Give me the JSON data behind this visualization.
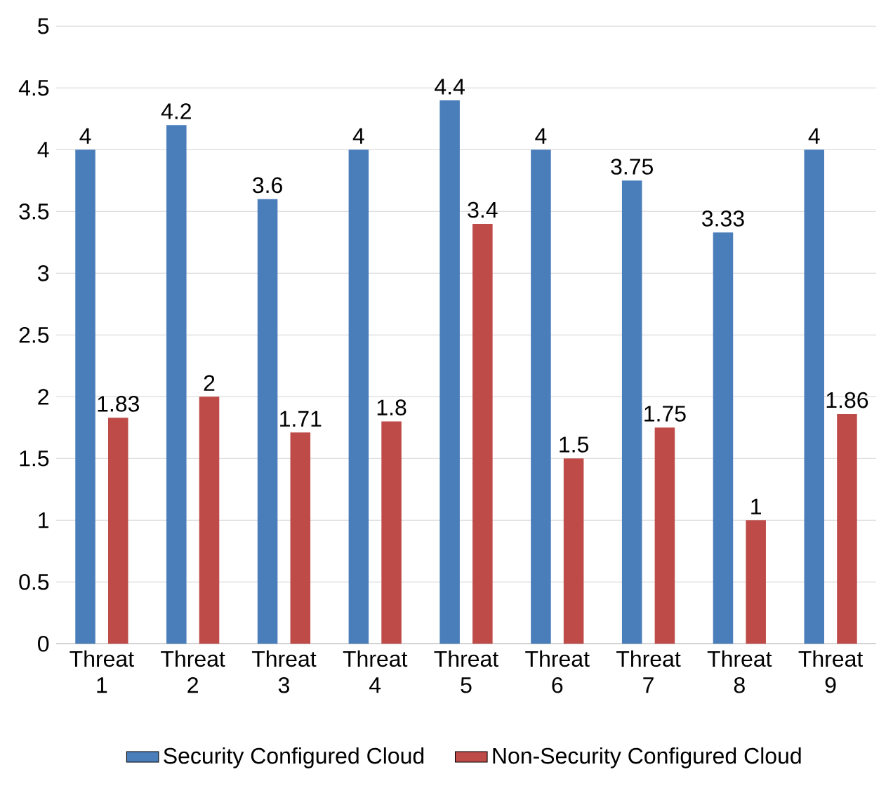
{
  "chart_data": {
    "type": "bar",
    "categories": [
      "Threat 1",
      "Threat 2",
      "Threat 3",
      "Threat 4",
      "Threat 5",
      "Threat 6",
      "Threat 7",
      "Threat 8",
      "Threat 9"
    ],
    "series": [
      {
        "name": "Security Configured Cloud",
        "color": "#4a7ebb",
        "values": [
          4,
          4.2,
          3.6,
          4,
          4.4,
          4,
          3.75,
          3.33,
          4
        ]
      },
      {
        "name": "Non-Security Configured Cloud",
        "color": "#be4b48",
        "values": [
          1.83,
          2,
          1.71,
          1.8,
          3.4,
          1.5,
          1.75,
          1,
          1.86
        ]
      }
    ],
    "ylim": [
      0,
      5
    ],
    "yticks": [
      0,
      0.5,
      1,
      1.5,
      2,
      2.5,
      3,
      3.5,
      4,
      4.5,
      5
    ],
    "grid": "y",
    "legend": "bottom",
    "data_labels": true
  }
}
